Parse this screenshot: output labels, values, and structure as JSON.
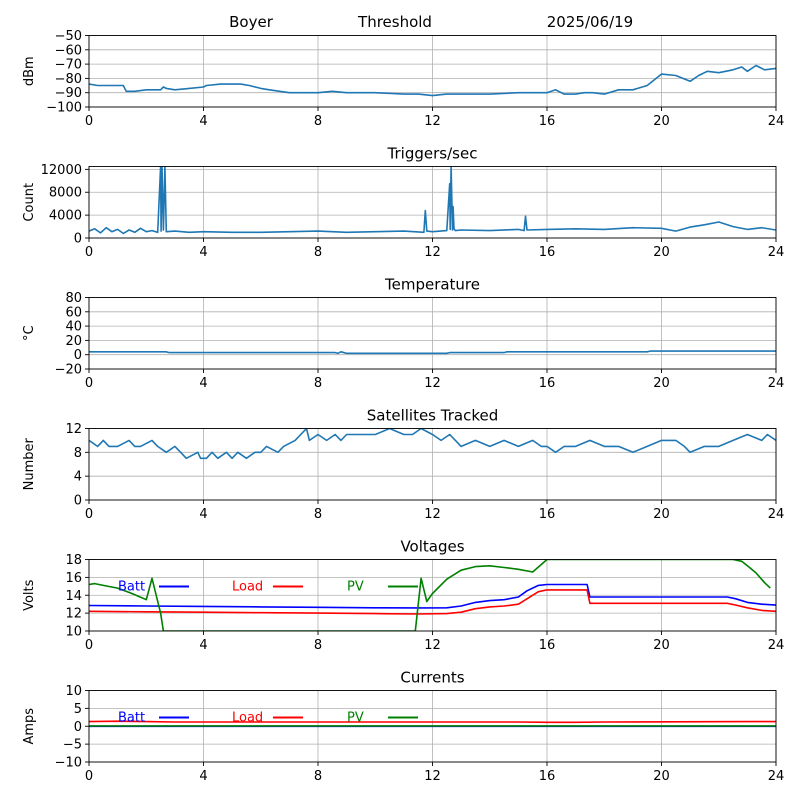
{
  "header": {
    "site": "Boyer",
    "mode": "Threshold",
    "date": "2025/06/19"
  },
  "chart_data": [
    {
      "type": "line",
      "title": "",
      "xlabel": "",
      "ylabel": "dBm",
      "xlim": [
        0,
        24
      ],
      "ylim": [
        -100,
        -50
      ],
      "xticks": [
        0,
        4,
        8,
        12,
        16,
        20,
        24
      ],
      "yticks": [
        -100,
        -90,
        -80,
        -70,
        -60,
        -50
      ],
      "grid": true,
      "series": [
        {
          "color": "#1f77b4",
          "x": [
            0,
            0.3,
            0.6,
            1.0,
            1.2,
            1.3,
            1.6,
            2.0,
            2.3,
            2.5,
            2.6,
            2.7,
            3.0,
            3.5,
            4.0,
            4.1,
            4.6,
            5.0,
            5.3,
            5.6,
            6.0,
            6.3,
            7.0,
            7.5,
            8.0,
            8.5,
            9.0,
            10.0,
            11.0,
            11.5,
            12.0,
            12.5,
            13.0,
            14.0,
            15.0,
            15.5,
            16.0,
            16.3,
            16.6,
            17.0,
            17.3,
            17.6,
            18.0,
            18.5,
            19.0,
            19.5,
            20.0,
            20.5,
            21.0,
            21.3,
            21.6,
            22.0,
            22.5,
            22.8,
            23.0,
            23.3,
            23.6,
            24.0
          ],
          "values": [
            -84,
            -85,
            -85,
            -85,
            -85,
            -89,
            -89,
            -88,
            -88,
            -88,
            -86,
            -87,
            -88,
            -87,
            -86,
            -85,
            -84,
            -84,
            -84,
            -85,
            -87,
            -88,
            -90,
            -90,
            -90,
            -89,
            -90,
            -90,
            -91,
            -91,
            -92,
            -91,
            -91,
            -91,
            -90,
            -90,
            -90,
            -88,
            -91,
            -91,
            -90,
            -90,
            -91,
            -88,
            -88,
            -85,
            -77,
            -78,
            -82,
            -78,
            -75,
            -76,
            -74,
            -72,
            -75,
            -71,
            -74,
            -73
          ]
        }
      ]
    },
    {
      "type": "line",
      "title": "Triggers/sec",
      "xlabel": "",
      "ylabel": "Count",
      "xlim": [
        0,
        24
      ],
      "ylim": [
        0,
        12500
      ],
      "xticks": [
        0,
        4,
        8,
        12,
        16,
        20,
        24
      ],
      "yticks": [
        0,
        4000,
        8000,
        12000
      ],
      "grid": true,
      "series": [
        {
          "color": "#1f77b4",
          "x": [
            0,
            0.2,
            0.4,
            0.6,
            0.8,
            1.0,
            1.2,
            1.4,
            1.6,
            1.8,
            2.0,
            2.2,
            2.4,
            2.5,
            2.52,
            2.55,
            2.6,
            2.65,
            2.7,
            3.0,
            3.5,
            4.0,
            5.0,
            6.0,
            7.0,
            8.0,
            9.0,
            10.0,
            11.0,
            11.7,
            11.75,
            11.8,
            12.0,
            12.5,
            12.6,
            12.62,
            12.65,
            12.7,
            12.72,
            12.75,
            12.8,
            13.0,
            14.0,
            15.0,
            15.2,
            15.25,
            15.3,
            16.0,
            17.0,
            18.0,
            19.0,
            20.0,
            20.5,
            21.0,
            21.5,
            22.0,
            22.5,
            23.0,
            23.5,
            24.0
          ],
          "values": [
            1200,
            1600,
            900,
            1800,
            1100,
            1500,
            800,
            1400,
            1000,
            1700,
            1100,
            1300,
            1000,
            12500,
            1200,
            12500,
            1400,
            12500,
            1100,
            1200,
            1000,
            1100,
            1000,
            1000,
            1100,
            1200,
            1000,
            1100,
            1200,
            1000,
            4800,
            1200,
            1100,
            1300,
            9500,
            1500,
            12500,
            1400,
            5500,
            1600,
            1300,
            1400,
            1300,
            1500,
            1300,
            3800,
            1400,
            1500,
            1600,
            1500,
            1800,
            1700,
            1200,
            1900,
            2300,
            2800,
            2000,
            1500,
            1800,
            1400
          ]
        }
      ]
    },
    {
      "type": "line",
      "title": "Temperature",
      "xlabel": "",
      "ylabel": "°C",
      "xlim": [
        0,
        24
      ],
      "ylim": [
        -20,
        80
      ],
      "xticks": [
        0,
        4,
        8,
        12,
        16,
        20,
        24
      ],
      "yticks": [
        -20,
        0,
        20,
        40,
        60,
        80
      ],
      "grid": true,
      "series": [
        {
          "color": "#1f77b4",
          "x": [
            0,
            2.7,
            2.8,
            8.6,
            8.7,
            8.8,
            9.0,
            9.2,
            12.5,
            12.6,
            14.5,
            14.6,
            19.5,
            19.6,
            24
          ],
          "values": [
            4,
            4,
            3,
            3,
            2,
            4,
            2,
            2,
            2,
            3,
            3,
            4,
            4,
            5,
            5
          ]
        }
      ]
    },
    {
      "type": "line",
      "title": "Satellites Tracked",
      "xlabel": "",
      "ylabel": "Number",
      "xlim": [
        0,
        24
      ],
      "ylim": [
        0,
        12
      ],
      "xticks": [
        0,
        4,
        8,
        12,
        16,
        20,
        24
      ],
      "yticks": [
        0,
        4,
        8,
        12
      ],
      "grid": true,
      "series": [
        {
          "color": "#1f77b4",
          "x": [
            0,
            0.3,
            0.5,
            0.7,
            1.0,
            1.4,
            1.6,
            1.8,
            2.2,
            2.4,
            2.7,
            3.0,
            3.2,
            3.4,
            3.8,
            3.9,
            4.1,
            4.3,
            4.5,
            4.8,
            5.0,
            5.2,
            5.5,
            5.8,
            6.0,
            6.2,
            6.6,
            6.8,
            7.2,
            7.6,
            7.7,
            8.0,
            8.3,
            8.6,
            8.8,
            9.0,
            9.5,
            10.0,
            10.5,
            11.0,
            11.3,
            11.6,
            12.0,
            12.3,
            12.6,
            12.8,
            13.0,
            13.5,
            14.0,
            14.5,
            15.0,
            15.5,
            15.8,
            16.0,
            16.3,
            16.6,
            17.0,
            17.5,
            18.0,
            18.5,
            19.0,
            19.5,
            20.0,
            20.5,
            20.8,
            21.0,
            21.5,
            22.0,
            22.5,
            23.0,
            23.5,
            23.7,
            24.0
          ],
          "values": [
            10,
            9,
            10,
            9,
            9,
            10,
            9,
            9,
            10,
            9,
            8,
            9,
            8,
            7,
            8,
            7,
            7,
            8,
            7,
            8,
            7,
            8,
            7,
            8,
            8,
            9,
            8,
            9,
            10,
            12,
            10,
            11,
            10,
            11,
            10,
            11,
            11,
            11,
            12,
            11,
            11,
            12,
            11,
            10,
            11,
            10,
            9,
            10,
            9,
            10,
            9,
            10,
            9,
            9,
            8,
            9,
            9,
            10,
            9,
            9,
            8,
            9,
            10,
            10,
            9,
            8,
            9,
            9,
            10,
            11,
            10,
            11,
            10
          ]
        }
      ]
    },
    {
      "type": "line",
      "title": "Voltages",
      "xlabel": "",
      "ylabel": "Volts",
      "xlim": [
        0,
        24
      ],
      "ylim": [
        10,
        18
      ],
      "xticks": [
        0,
        4,
        8,
        12,
        16,
        20,
        24
      ],
      "yticks": [
        10,
        12,
        14,
        16,
        18
      ],
      "grid": true,
      "legend": "top-left",
      "series": [
        {
          "name": "Batt",
          "color": "#0000ff",
          "x": [
            0,
            2,
            4,
            6,
            8,
            10,
            11.5,
            12.5,
            13,
            13.5,
            14,
            14.5,
            15,
            15.3,
            15.7,
            16,
            16.5,
            17,
            17.4,
            17.5,
            18,
            20,
            22,
            22.3,
            22.6,
            23,
            23.5,
            24
          ],
          "values": [
            12.85,
            12.8,
            12.75,
            12.7,
            12.65,
            12.6,
            12.58,
            12.6,
            12.8,
            13.2,
            13.4,
            13.5,
            13.8,
            14.5,
            15.1,
            15.2,
            15.2,
            15.2,
            15.2,
            13.8,
            13.8,
            13.8,
            13.8,
            13.8,
            13.6,
            13.2,
            13.0,
            12.9
          ]
        },
        {
          "name": "Load",
          "color": "#ff0000",
          "x": [
            0,
            2,
            4,
            6,
            8,
            10,
            11.5,
            12.5,
            13,
            13.5,
            14,
            14.5,
            15,
            15.3,
            15.7,
            16,
            16.5,
            17,
            17.4,
            17.5,
            18,
            20,
            22,
            22.3,
            22.6,
            23,
            23.5,
            24
          ],
          "values": [
            12.2,
            12.15,
            12.1,
            12.05,
            12.0,
            11.95,
            11.9,
            11.95,
            12.1,
            12.5,
            12.7,
            12.8,
            13.0,
            13.6,
            14.4,
            14.6,
            14.6,
            14.6,
            14.6,
            13.1,
            13.1,
            13.1,
            13.1,
            13.1,
            12.9,
            12.6,
            12.3,
            12.2
          ]
        },
        {
          "name": "PV",
          "color": "#008000",
          "x": [
            0,
            0.2,
            0.5,
            1.0,
            1.5,
            2.0,
            2.2,
            2.5,
            2.6,
            11.4,
            11.6,
            11.8,
            12.0,
            12.5,
            13.0,
            13.5,
            14.0,
            14.5,
            15.0,
            15.5,
            16.0,
            22.5,
            22.8,
            23.0,
            23.3,
            23.6,
            23.8
          ],
          "values": [
            15.2,
            15.3,
            15.1,
            14.8,
            14.2,
            13.5,
            15.9,
            12.0,
            10.0,
            10.0,
            15.9,
            13.3,
            14.2,
            15.8,
            16.8,
            17.2,
            17.3,
            17.1,
            16.9,
            16.6,
            18.0,
            18.0,
            17.8,
            17.3,
            16.5,
            15.4,
            14.8
          ]
        }
      ]
    },
    {
      "type": "line",
      "title": "Currents",
      "xlabel": "",
      "ylabel": "Amps",
      "xlim": [
        0,
        24
      ],
      "ylim": [
        -10,
        10
      ],
      "xticks": [
        0,
        4,
        8,
        12,
        16,
        20,
        24
      ],
      "yticks": [
        -10,
        -5,
        0,
        5,
        10
      ],
      "grid": true,
      "legend": "top-left",
      "series": [
        {
          "name": "Batt",
          "color": "#0000ff",
          "x": [
            0,
            24
          ],
          "values": [
            0,
            0
          ]
        },
        {
          "name": "Load",
          "color": "#ff0000",
          "x": [
            0,
            1,
            2,
            3,
            8,
            12,
            15,
            16,
            17,
            18,
            23,
            24
          ],
          "values": [
            1.3,
            1.4,
            1.3,
            1.2,
            1.2,
            1.2,
            1.2,
            1.1,
            1.1,
            1.2,
            1.3,
            1.3
          ]
        },
        {
          "name": "PV",
          "color": "#008000",
          "x": [
            0,
            24
          ],
          "values": [
            0.1,
            0.1
          ]
        }
      ]
    }
  ]
}
